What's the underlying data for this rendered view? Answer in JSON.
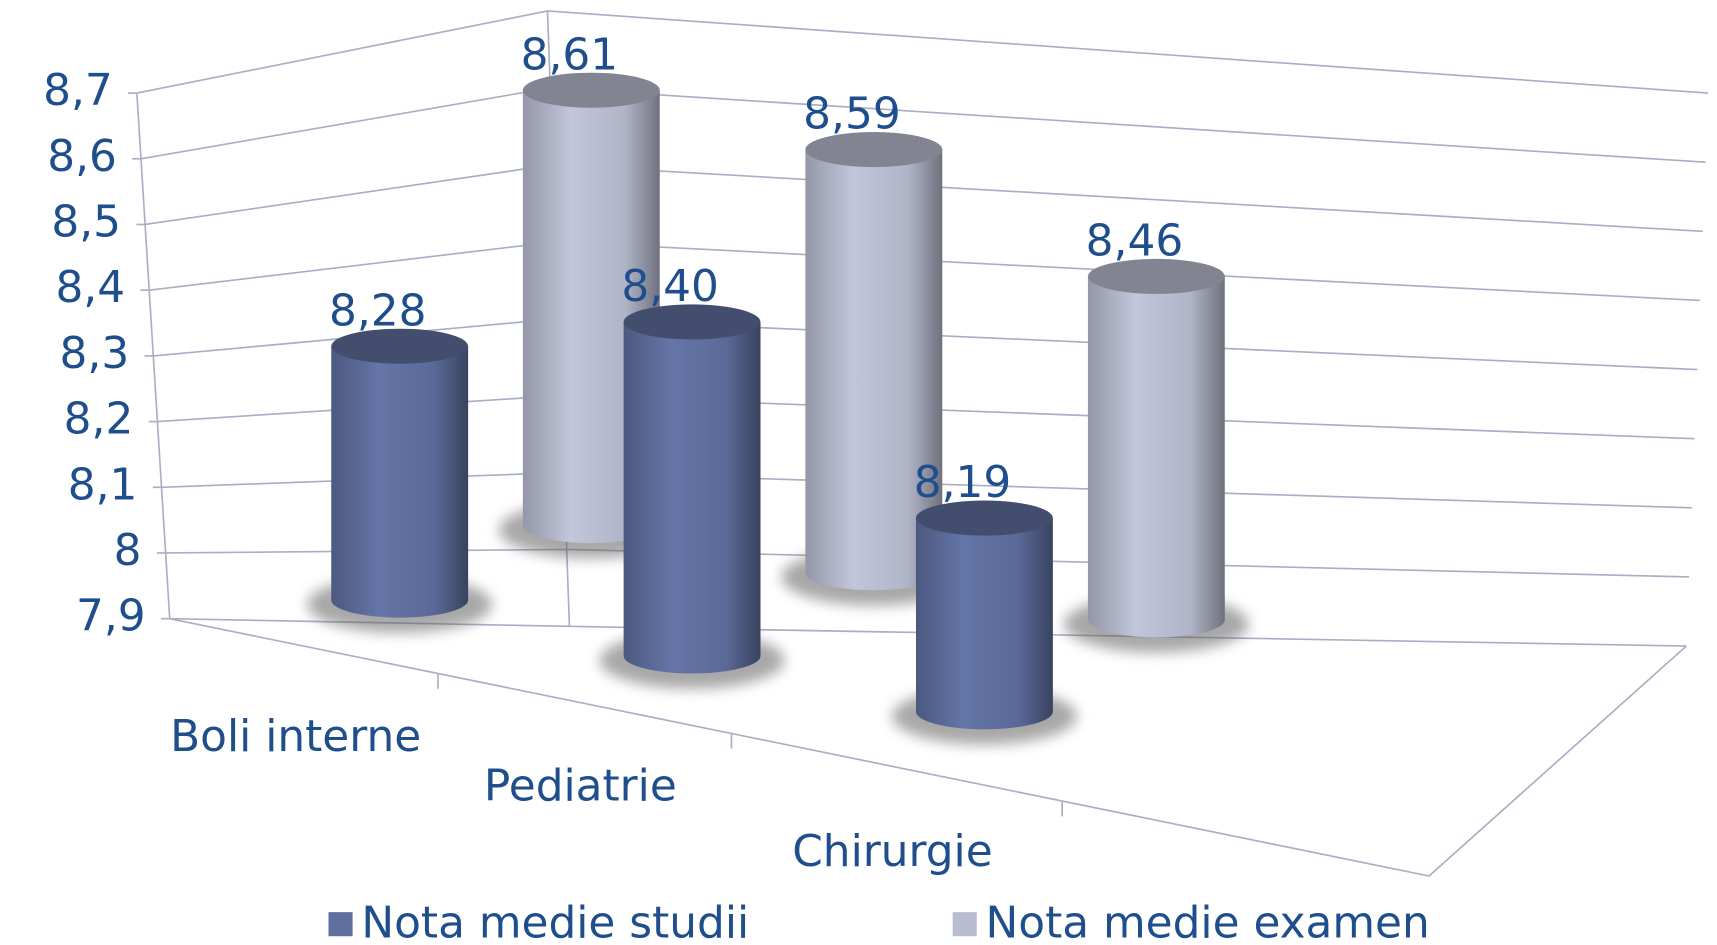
{
  "chart_data": {
    "type": "bar3d",
    "categories": [
      "Boli interne",
      "Pediatrie",
      "Chirurgie"
    ],
    "series": [
      {
        "name": "Nota medie studii",
        "color": "#5f6f9f",
        "values": [
          8.28,
          8.4,
          8.19
        ],
        "value_labels": [
          "8,28",
          "8,40",
          "8,19"
        ]
      },
      {
        "name": "Nota medie examen",
        "color": "#b9bdd1",
        "values": [
          8.61,
          8.59,
          8.46
        ],
        "value_labels": [
          "8,61",
          "8,59",
          "8,46"
        ]
      }
    ],
    "ylim": [
      7.9,
      8.7
    ],
    "yticks": [
      {
        "value": 7.9,
        "label": "7,9"
      },
      8,
      {
        "value": 8.1,
        "label": "8,1"
      },
      {
        "value": 8.2,
        "label": "8,2"
      },
      {
        "value": 8.3,
        "label": "8,3"
      },
      {
        "value": 8.4,
        "label": "8,4"
      },
      {
        "value": 8.5,
        "label": "8,5"
      },
      {
        "value": 8.6,
        "label": "8,6"
      },
      {
        "value": 8.7,
        "label": "8,7"
      }
    ],
    "grid": true,
    "legend": "bottom"
  }
}
